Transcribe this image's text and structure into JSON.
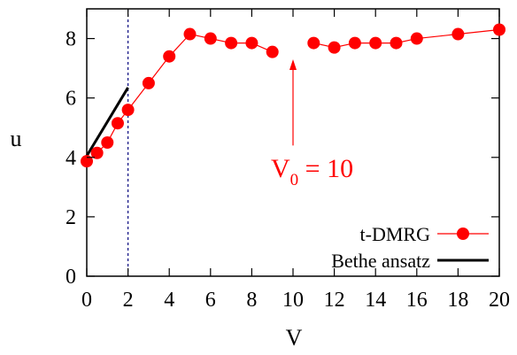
{
  "chart_data": {
    "type": "line",
    "xlabel": "V",
    "ylabel": "u",
    "xlim": [
      0,
      20
    ],
    "ylim": [
      0,
      9
    ],
    "xticks": [
      "0",
      "2",
      "4",
      "6",
      "8",
      "10",
      "12",
      "14",
      "16",
      "18",
      "20"
    ],
    "yticks": [
      "0",
      "2",
      "4",
      "6",
      "8"
    ],
    "grid": false,
    "legend_position": "bottom-right",
    "series": [
      {
        "name": "t-DMRG",
        "color": "#ff0000",
        "marker": "circle",
        "x": [
          0,
          0.5,
          1,
          1.5,
          2,
          3,
          4,
          5,
          6,
          7,
          8,
          9,
          11,
          12,
          13,
          14,
          15,
          16,
          18,
          20
        ],
        "y": [
          3.87,
          4.15,
          4.5,
          5.15,
          5.6,
          6.5,
          7.4,
          8.15,
          8.0,
          7.85,
          7.85,
          7.55,
          7.85,
          7.7,
          7.85,
          7.85,
          7.85,
          8.0,
          8.15,
          8.3
        ],
        "segments": [
          [
            0,
            11
          ],
          [
            12,
            19
          ]
        ]
      },
      {
        "name": "Bethe ansatz",
        "color": "#000000",
        "x": [
          0,
          2
        ],
        "y": [
          4.05,
          6.35
        ]
      }
    ],
    "reference_line": {
      "x": 2,
      "color": "#000080",
      "style": "dashed"
    },
    "annotation": {
      "text_main": "V",
      "text_sub": "0",
      "text_rest": " = 10",
      "color": "#ff0000",
      "arrow_x": 10,
      "arrow_from_y": 4.4,
      "arrow_to_y": 7.3
    }
  }
}
